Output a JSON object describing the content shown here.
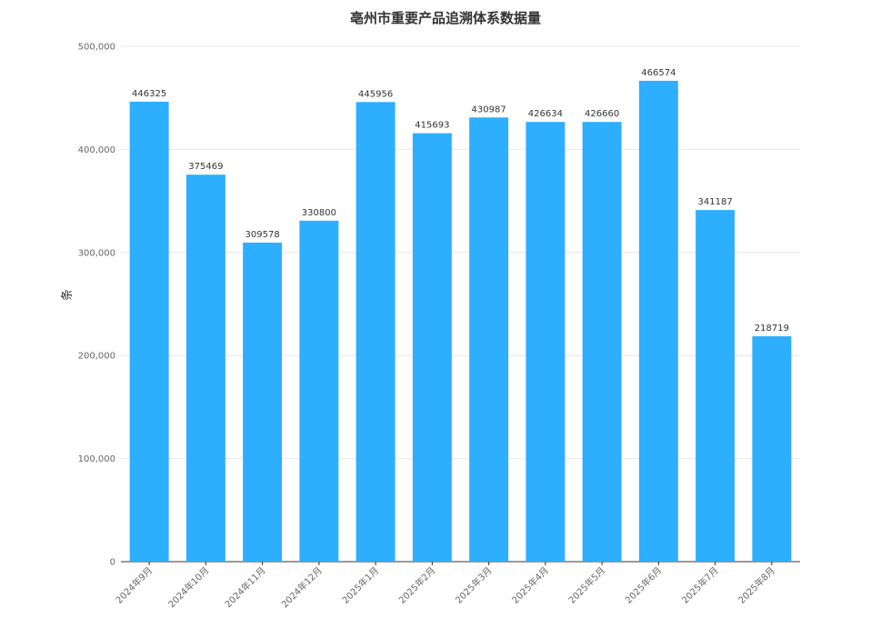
{
  "chart_data": {
    "type": "bar",
    "title": "亳州市重要产品追溯体系数据量",
    "xlabel": "",
    "ylabel": "条",
    "categories": [
      "2024年9月",
      "2024年10月",
      "2024年11月",
      "2024年12月",
      "2025年1月",
      "2025年2月",
      "2025年3月",
      "2025年4月",
      "2025年5月",
      "2025年6月",
      "2025年7月",
      "2025年8月"
    ],
    "values": [
      446325,
      375469,
      309578,
      330800,
      445956,
      415693,
      430987,
      426634,
      426660,
      466574,
      341187,
      218719
    ],
    "value_labels": [
      "446325",
      "375469",
      "309578",
      "330800",
      "445956",
      "415693",
      "430987",
      "426634",
      "426660",
      "466574",
      "341187",
      "218719"
    ],
    "ylim": [
      0,
      500000
    ],
    "yticks": [
      0,
      100000,
      200000,
      300000,
      400000,
      500000
    ],
    "ytick_labels": [
      "0",
      "100,000",
      "200,000",
      "300,000",
      "400,000",
      "500,000"
    ],
    "grid": true,
    "legend": "none",
    "bar_color": "#2EAEFF",
    "grid_color": "#e6e6e6",
    "axis_color": "#333333"
  }
}
